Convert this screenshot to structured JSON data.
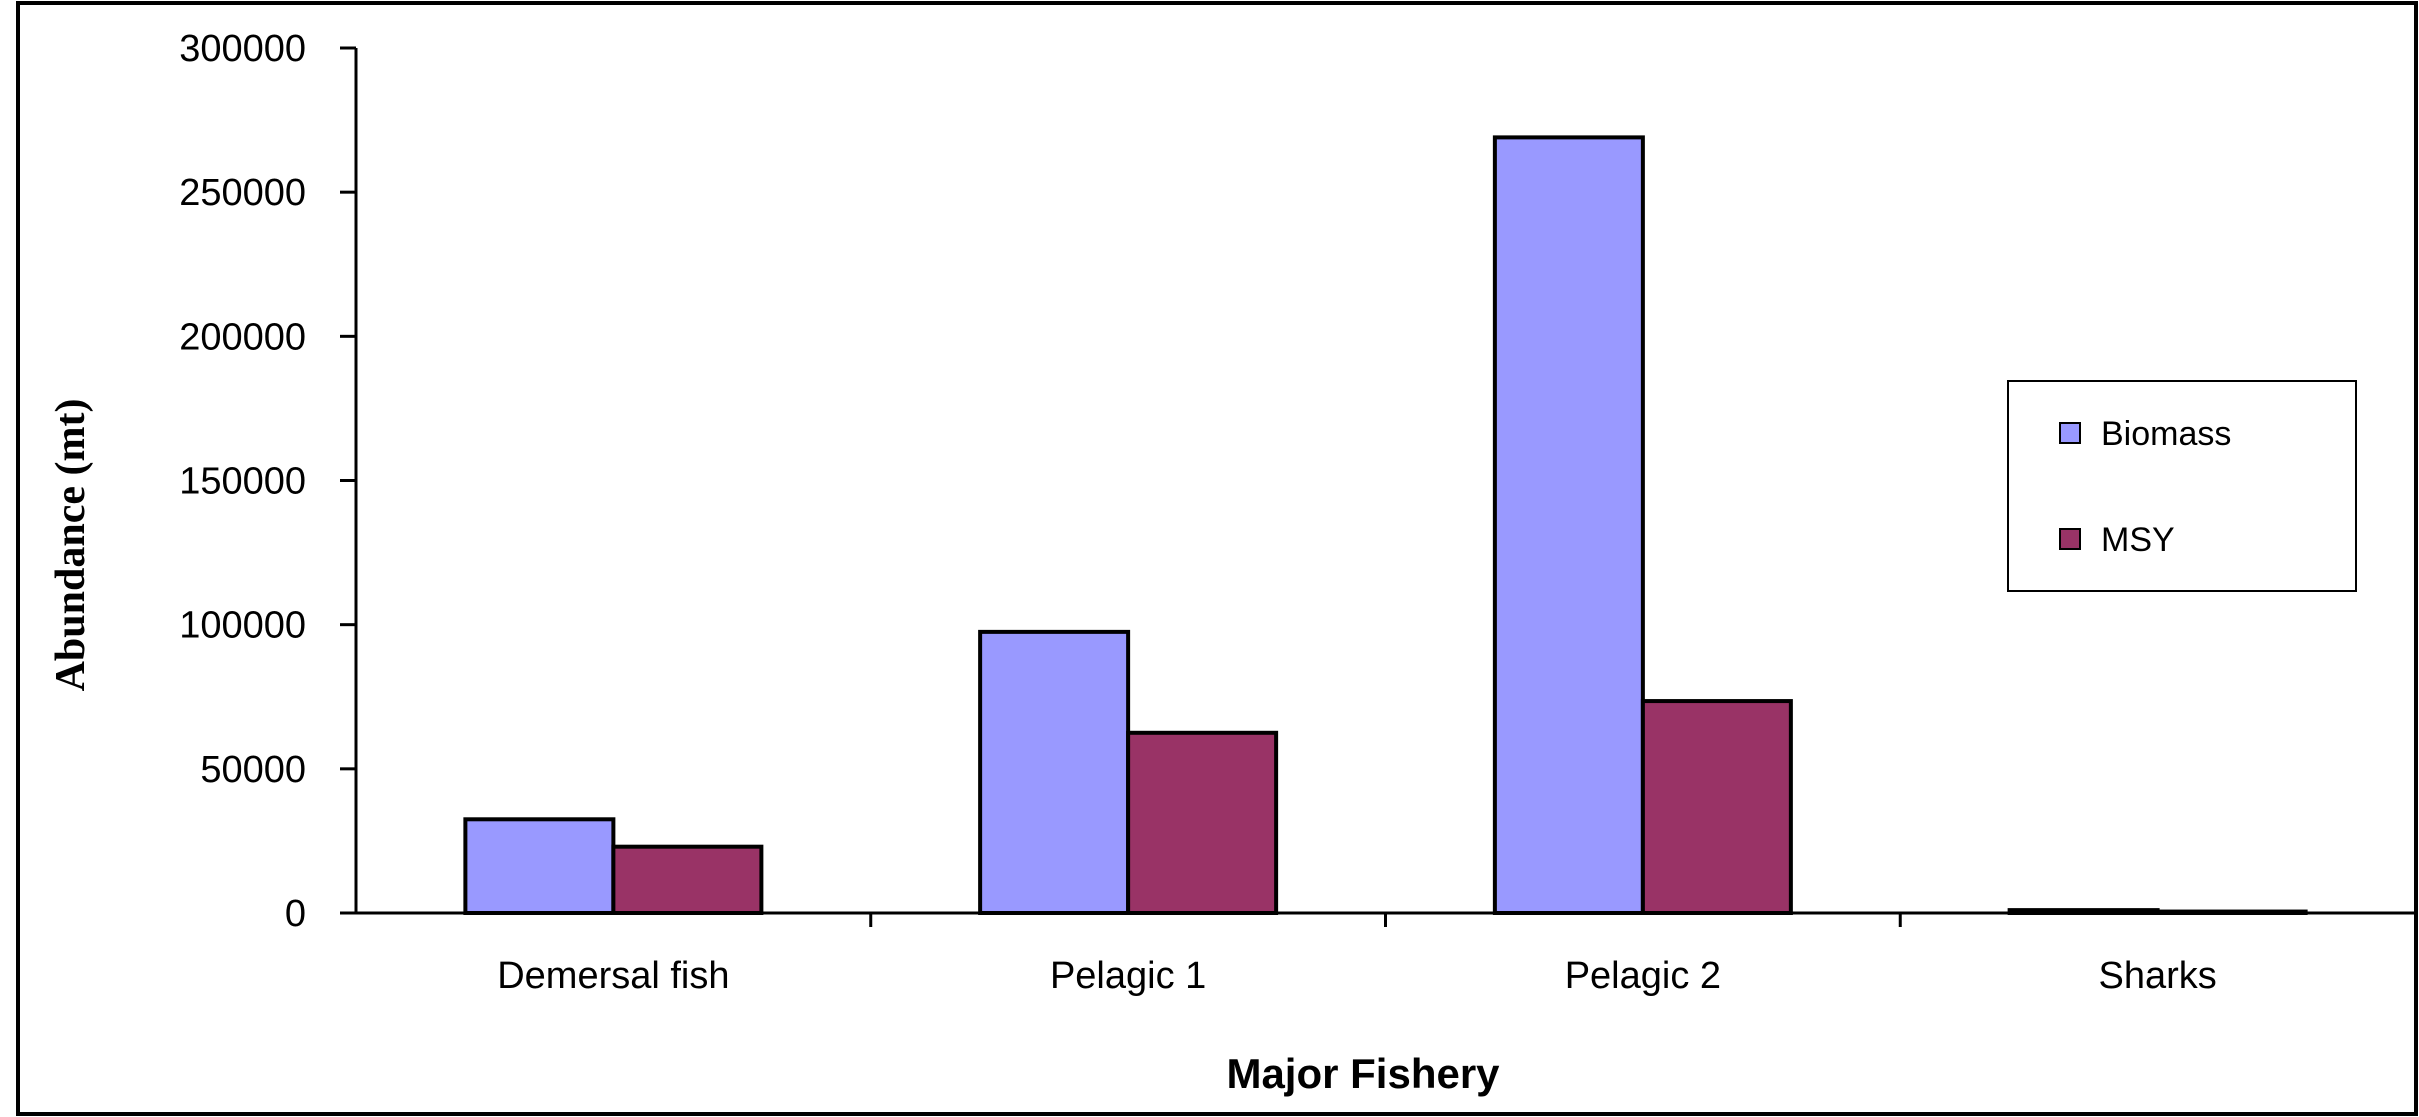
{
  "chart_data": {
    "type": "bar",
    "title": "",
    "xlabel": "Major Fishery",
    "ylabel": "Abundance (mt)",
    "categories": [
      "Demersal fish",
      "Pelagic 1",
      "Pelagic 2",
      "Sharks"
    ],
    "series": [
      {
        "name": "Biomass",
        "values": [
          32500,
          97500,
          269000,
          1000
        ],
        "color": "#9999ff"
      },
      {
        "name": "MSY",
        "values": [
          23000,
          62500,
          73500,
          500
        ],
        "color": "#993366"
      }
    ],
    "ylim": [
      0,
      300000
    ],
    "yticks": [
      "300000",
      "250000",
      "200000",
      "150000",
      "100000",
      "50000",
      "0"
    ],
    "ytick_values": [
      300000,
      250000,
      200000,
      150000,
      100000,
      50000,
      0
    ],
    "grid": false,
    "legend_position": "right"
  }
}
